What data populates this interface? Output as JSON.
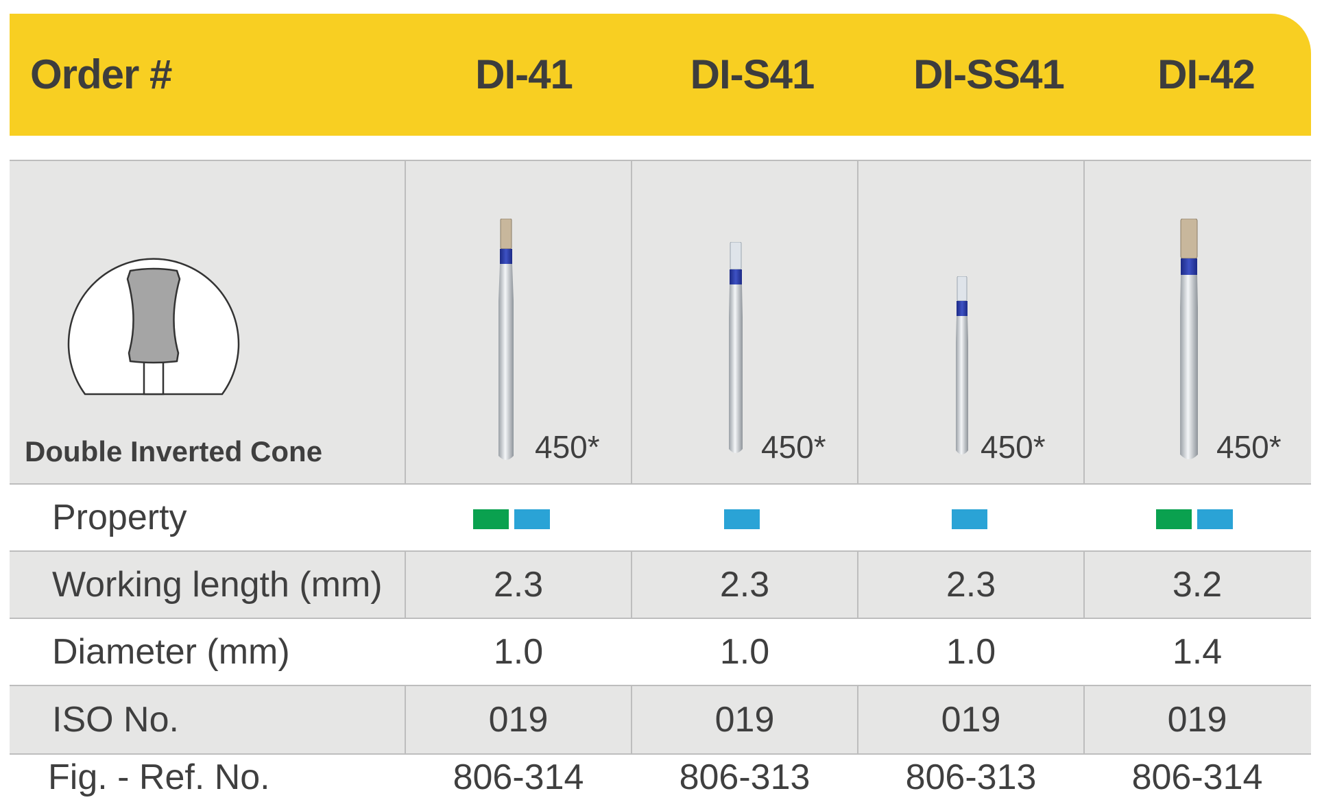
{
  "header": {
    "order_label": "Order #",
    "columns": [
      "DI-41",
      "DI-S41",
      "DI-SS41",
      "DI-42"
    ]
  },
  "shape": {
    "label": "Double Inverted Cone",
    "icon": "double-inverted-cone-icon"
  },
  "quantity_labels": [
    "450*",
    "450*",
    "450*",
    "450*"
  ],
  "rows": {
    "property": {
      "label": "Property",
      "swatches": [
        [
          "#0aa14f",
          "#2aa3d6"
        ],
        [
          "#2aa3d6"
        ],
        [
          "#2aa3d6"
        ],
        [
          "#0aa14f",
          "#2aa3d6"
        ]
      ]
    },
    "working_length": {
      "label": "Working length (mm)",
      "values": [
        "2.3",
        "2.3",
        "2.3",
        "3.2"
      ]
    },
    "diameter": {
      "label": "Diameter (mm)",
      "values": [
        "1.0",
        "1.0",
        "1.0",
        "1.4"
      ]
    },
    "iso": {
      "label": "ISO No.",
      "values": [
        "019",
        "019",
        "019",
        "019"
      ]
    },
    "fig_ref": {
      "label": "Fig. - Ref. No.",
      "values": [
        "806-314",
        "806-313",
        "806-313",
        "806-314"
      ]
    }
  },
  "colors": {
    "header_bg": "#f8cf22",
    "row_gray": "#e6e6e5",
    "band_blue": "#2d3fa6",
    "green": "#0aa14f",
    "cyan": "#2aa3d6"
  }
}
